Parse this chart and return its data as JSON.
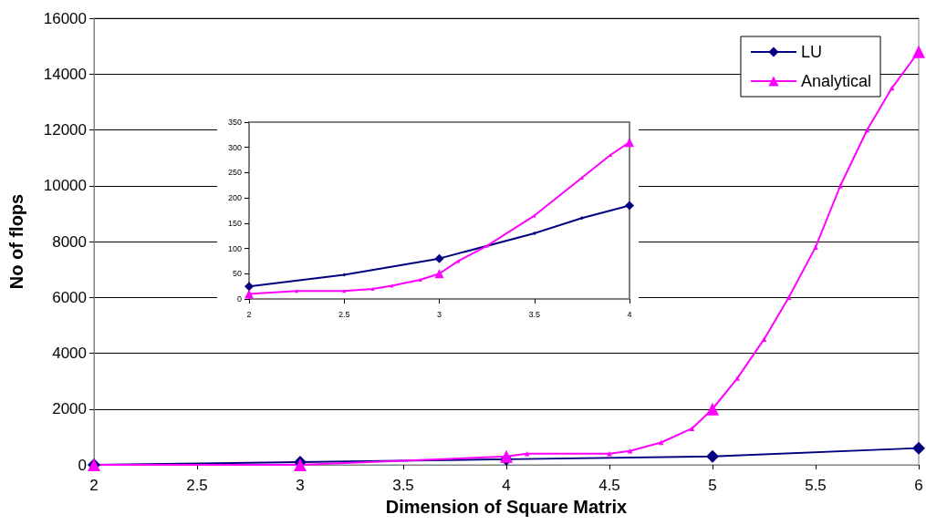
{
  "chart_data": [
    {
      "type": "line",
      "xlabel": "Dimension of Square Matrix",
      "ylabel": "No of flops",
      "xlim": [
        2,
        6
      ],
      "xticks": [
        2,
        2.5,
        3,
        3.5,
        4,
        4.5,
        5,
        5.5,
        6
      ],
      "ylim": [
        0,
        16000
      ],
      "yticks": [
        0,
        2000,
        4000,
        6000,
        8000,
        10000,
        12000,
        14000,
        16000
      ],
      "grid": "y",
      "legend": "top right",
      "series": [
        {
          "name": "LU",
          "color": "#000080",
          "marker": "diamond",
          "x": [
            2,
            3,
            4,
            5,
            6
          ],
          "values": [
            0,
            100,
            200,
            300,
            600
          ]
        },
        {
          "name": "Analytical",
          "color": "#ff00ff",
          "marker": "triangle",
          "x": [
            2,
            3,
            4,
            4.1,
            4.5,
            4.6,
            4.75,
            4.9,
            5,
            5.12,
            5.25,
            5.37,
            5.5,
            5.62,
            5.75,
            5.87,
            6
          ],
          "values": [
            0,
            0,
            300,
            400,
            400,
            500,
            800,
            1300,
            2000,
            3100,
            4500,
            6000,
            7800,
            10000,
            12000,
            13500,
            14800
          ]
        }
      ]
    },
    {
      "type": "line",
      "xlim": [
        2,
        4
      ],
      "xticks": [
        2,
        2.5,
        3,
        3.5,
        4
      ],
      "ylim": [
        0,
        350
      ],
      "yticks": [
        0,
        50,
        100,
        150,
        200,
        250,
        300,
        350
      ],
      "grid": false,
      "legend": false,
      "series": [
        {
          "color": "#000080",
          "marker": "diamond",
          "x": [
            2,
            2.5,
            3,
            3.5,
            3.75,
            4
          ],
          "values": [
            25,
            48,
            80,
            130,
            160,
            185
          ]
        },
        {
          "color": "#ff00ff",
          "marker": "triangle",
          "x": [
            2,
            2.25,
            2.5,
            2.65,
            2.75,
            2.9,
            3,
            3.1,
            3.25,
            3.5,
            3.75,
            3.9,
            4
          ],
          "values": [
            10,
            16,
            16,
            20,
            26,
            38,
            50,
            75,
            105,
            165,
            240,
            285,
            310
          ]
        }
      ]
    }
  ]
}
